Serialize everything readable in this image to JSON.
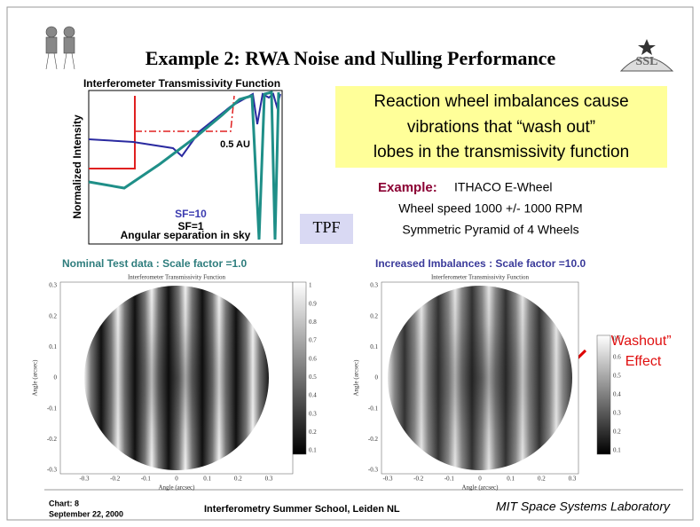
{
  "header": {
    "title": "Example 2: RWA Noise and Nulling Performance"
  },
  "transmissivity_plot": {
    "title": "Interferometer Transmissivity Function",
    "y_label": "Normalized Intensity",
    "x_label": "Angular separation in sky",
    "labels": [
      "0.5 AU",
      "SF=10",
      "SF=1"
    ]
  },
  "callout": {
    "lines": [
      "Reaction wheel imbalances cause",
      "vibrations that “wash out”",
      "lobes in the transmissivity function"
    ]
  },
  "example": {
    "label": "Example:",
    "lines": [
      "ITHACO E-Wheel",
      "Wheel speed 1000 +/- 1000 RPM",
      "Symmetric Pyramid of 4 Wheels"
    ]
  },
  "tpf": "TPF",
  "panels": [
    {
      "heading": "Nominal Test data : Scale factor =1.0",
      "plot_title": "Interferometer Transmissivity Function",
      "x_label": "Angle (arcsec)",
      "y_label": "Angle (arcsec)",
      "y_ticks": [
        "0.3",
        "0.2",
        "0.1",
        "0",
        "-0.1",
        "-0.2",
        "-0.3"
      ],
      "x_ticks": [
        "-0.3",
        "-0.2",
        "-0.1",
        "0",
        "0.1",
        "0.2",
        "0.3"
      ],
      "colorbar_ticks": [
        "1",
        "0.9",
        "0.8",
        "0.7",
        "0.6",
        "0.5",
        "0.4",
        "0.3",
        "0.2",
        "0.1"
      ]
    },
    {
      "heading": "Increased Imbalances : Scale factor =10.0",
      "plot_title": "Interferometer Transmissivity Function",
      "x_label": "Angle (arcsec)",
      "y_label": "Angle (arcsec)",
      "y_ticks": [
        "0.3",
        "0.2",
        "0.1",
        "0",
        "-0.1",
        "-0.2",
        "-0.3"
      ],
      "x_ticks": [
        "-0.3",
        "-0.2",
        "-0.1",
        "0",
        "0.1",
        "0.2",
        "0.3"
      ],
      "colorbar_ticks": [
        "0.7",
        "0.6",
        "0.5",
        "0.4",
        "0.3",
        "0.2",
        "0.1"
      ]
    }
  ],
  "annotation": {
    "lines": [
      "“Washout”",
      "Effect"
    ]
  },
  "footer": {
    "chart": "Chart: 8",
    "date": "September 22, 2000",
    "event": "Interferometry Summer School, Leiden NL",
    "lab": "MIT Space Systems Laboratory"
  }
}
